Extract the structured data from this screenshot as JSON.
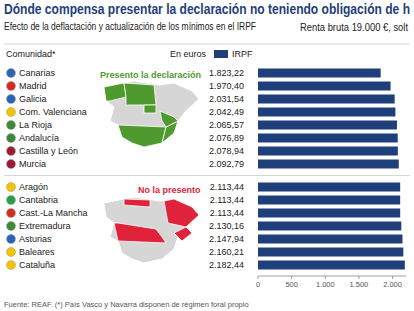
{
  "chart_data": {
    "type": "bar",
    "orientation": "horizontal",
    "title": "Dónde compensa presentar la declaración no teniendo obligación de h",
    "subtitle": "Efecto de la deflactación y actualización de los mínimos en el IRPF",
    "annotations": [
      "Renta bruta 19.000 €, solt"
    ],
    "ylabel": "Comunidad*",
    "xlabel": "En euros",
    "source": "Fuente: REAF. (*) País Vasco y Navarra disponen de régimen foral propio",
    "categories": [
      "Canarias",
      "Madrid",
      "Galicia",
      "Com. Valenciana",
      "La Rioja",
      "Andalucía",
      "Castilla y León",
      "Murcia",
      "Aragón",
      "Cantabria",
      "Cast.-La Mancha",
      "Extremadura",
      "Asturias",
      "Baleares",
      "Cataluña"
    ],
    "groups": [
      {
        "name": "Presento la declaración",
        "members": [
          "Canarias",
          "Madrid",
          "Galicia",
          "Com. Valenciana",
          "La Rioja",
          "Andalucía",
          "Castilla y León",
          "Murcia"
        ]
      },
      {
        "name": "No la presento",
        "members": [
          "Aragón",
          "Cantabria",
          "Cast.-La Mancha",
          "Extremadura",
          "Asturias",
          "Baleares",
          "Cataluña"
        ]
      }
    ],
    "series": [
      {
        "name": "IRPF",
        "color": "#1f3f7a",
        "values": [
          1823.22,
          1970.4,
          2031.54,
          2042.49,
          2065.57,
          2076.89,
          2078.94,
          2092.79,
          2113.44,
          2113.44,
          2113.44,
          2130.16,
          2147.94,
          2160.21,
          2182.44
        ],
        "value_labels": [
          "1.823,22",
          "1.970,40",
          "2.031,54",
          "2.042,49",
          "2.065,57",
          "2.076,89",
          "2.078,94",
          "2.092,79",
          "2.113,44",
          "2.113,44",
          "2.113,44",
          "2.130,16",
          "2.147,94",
          "2.160,21",
          "2.182,44"
        ]
      }
    ],
    "xlim": [
      0,
      2200
    ],
    "xticks": [
      0,
      500,
      {
        "value": 1000,
        "label": "1.000"
      },
      {
        "value": 1500,
        "label": "1.500"
      },
      {
        "value": 2000,
        "label": "2.000"
      }
    ],
    "data_labels": true,
    "legend": "top-right",
    "grid": false
  }
}
